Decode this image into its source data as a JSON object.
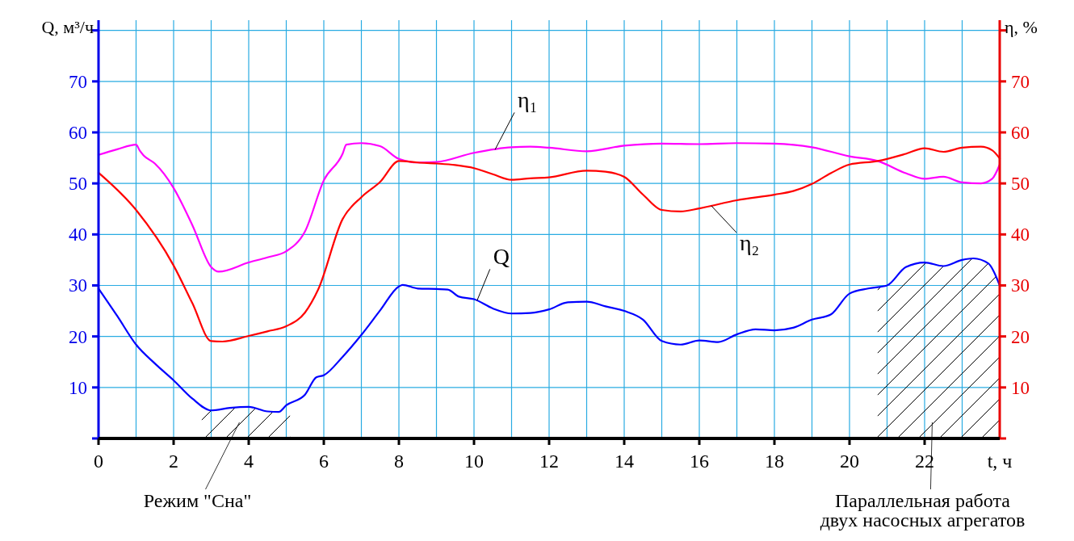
{
  "chart_data": {
    "type": "line",
    "xlabel": "t, ч",
    "ylabel": "Q, м³/ч",
    "y2label": "η, %",
    "xlim": [
      0,
      24
    ],
    "ylim": [
      0,
      82
    ],
    "y2lim": [
      0,
      82
    ],
    "xticks": [
      0,
      {
        "value": 1,
        "label": null
      },
      2,
      {
        "value": 3,
        "label": null
      },
      4,
      {
        "value": 5,
        "label": null
      },
      6,
      {
        "value": 7,
        "label": null
      },
      8,
      {
        "value": 9,
        "label": null
      },
      10,
      {
        "value": 11,
        "label": null
      },
      12,
      {
        "value": 13,
        "label": null
      },
      14,
      {
        "value": 15,
        "label": null
      },
      16,
      {
        "value": 17,
        "label": null
      },
      18,
      {
        "value": 19,
        "label": null
      },
      20,
      {
        "value": 21,
        "label": null
      },
      22,
      {
        "value": 23,
        "label": null
      },
      {
        "value": 24,
        "label": null
      }
    ],
    "yticks": [
      {
        "value": 0,
        "label": null
      },
      10,
      20,
      30,
      40,
      50,
      60,
      70,
      {
        "value": 80,
        "label": null
      }
    ],
    "y2ticks": [
      {
        "value": 0,
        "label": null
      },
      10,
      20,
      30,
      40,
      50,
      60,
      70,
      {
        "value": 80,
        "label": null
      }
    ],
    "grid": true,
    "line_style": "solid",
    "series": [
      {
        "name": "Q",
        "color": "#0000ff",
        "x": [
          0,
          0.5,
          1,
          1.5,
          2,
          2.5,
          3,
          3.5,
          4,
          4.5,
          4.8,
          5,
          5.5,
          5.8,
          6,
          6.5,
          7,
          7.5,
          8,
          8.1,
          8.5,
          9,
          9.3,
          9.6,
          10,
          10.5,
          11,
          11.5,
          12,
          12.5,
          13,
          13.5,
          14,
          14.5,
          15,
          15.5,
          16,
          16.5,
          17,
          17.5,
          18,
          18.5,
          19,
          19.5,
          20,
          20.5,
          21,
          21.5,
          22,
          22.5,
          23,
          23.3,
          23.7,
          24
        ],
        "values": [
          29.4,
          24,
          18.4,
          14.7,
          11.4,
          7.8,
          5.5,
          6,
          6.2,
          5.3,
          5.2,
          6.5,
          8.6,
          12,
          12.4,
          16,
          20.3,
          25.1,
          29.8,
          30.1,
          29.4,
          29.3,
          29.2,
          27.8,
          27.3,
          25.5,
          24.5,
          24.6,
          25.3,
          26.7,
          26.8,
          25.9,
          25,
          23.3,
          19.1,
          18.4,
          19.2,
          18.9,
          20.4,
          21.4,
          21.2,
          21.7,
          23.3,
          24.3,
          28.4,
          29.4,
          30,
          33.6,
          34.5,
          33.8,
          35,
          35.3,
          34.3,
          30
        ]
      },
      {
        "name": "η₁",
        "color": "#ff00ff",
        "axis": "y2",
        "x": [
          0,
          0.5,
          1,
          1.1,
          1.2,
          1.5,
          2,
          2.5,
          3,
          3.2,
          4,
          4.5,
          5,
          5.5,
          6,
          6.5,
          6.6,
          7,
          7.5,
          8,
          8.5,
          9,
          10,
          11,
          11.5,
          12,
          13,
          14,
          15,
          16,
          17,
          18,
          19,
          20,
          20.75,
          21.5,
          22,
          22.5,
          23,
          23.5,
          23.8,
          24
        ],
        "values": [
          55.6,
          56.7,
          57.6,
          56.4,
          55.5,
          53.9,
          49.1,
          41.8,
          33.6,
          32.7,
          34.5,
          35.5,
          36.7,
          40.6,
          50.6,
          55.8,
          57.6,
          57.9,
          57.3,
          54.8,
          54.1,
          54.2,
          56,
          57.1,
          57.2,
          57,
          56.3,
          57.4,
          57.8,
          57.7,
          57.9,
          57.8,
          57.1,
          55.3,
          54.4,
          52,
          50.9,
          51.3,
          50.2,
          50,
          50.9,
          53.7
        ]
      },
      {
        "name": "η₂",
        "color": "#ff0000",
        "axis": "y2",
        "x": [
          0,
          1,
          2,
          2.5,
          3,
          3.3,
          4,
          4.5,
          5,
          5.5,
          5.85,
          6.5,
          7,
          7.5,
          8,
          8.5,
          9,
          9.5,
          10,
          10.5,
          11,
          11.5,
          12,
          13,
          13.5,
          14,
          14.5,
          15,
          15.5,
          16,
          17,
          18,
          18.5,
          19,
          19.5,
          20,
          20.75,
          21,
          21.5,
          22,
          22.5,
          23,
          23.5,
          23.8,
          24
        ],
        "values": [
          52.1,
          44.8,
          33.9,
          26.5,
          19.1,
          19,
          20.1,
          21,
          22,
          24.7,
          29.2,
          43,
          47.3,
          50.3,
          54.4,
          54.1,
          53.9,
          53.6,
          53,
          51.8,
          50.7,
          51,
          51.2,
          52.5,
          52.3,
          51.3,
          47.8,
          44.8,
          44.5,
          45.1,
          46.7,
          47.8,
          48.5,
          49.9,
          52,
          53.7,
          54.4,
          54.8,
          55.8,
          56.9,
          56.2,
          57,
          57.2,
          56.5,
          54.9
        ]
      }
    ],
    "bands": [
      {
        "axis": "x",
        "from": 2.75,
        "to": 5.1,
        "label": "Режим \"Сна\""
      },
      {
        "axis": "x",
        "from": 20.75,
        "to": 24,
        "label": "Параллельная работа двух насосных агрегатов"
      }
    ]
  }
}
